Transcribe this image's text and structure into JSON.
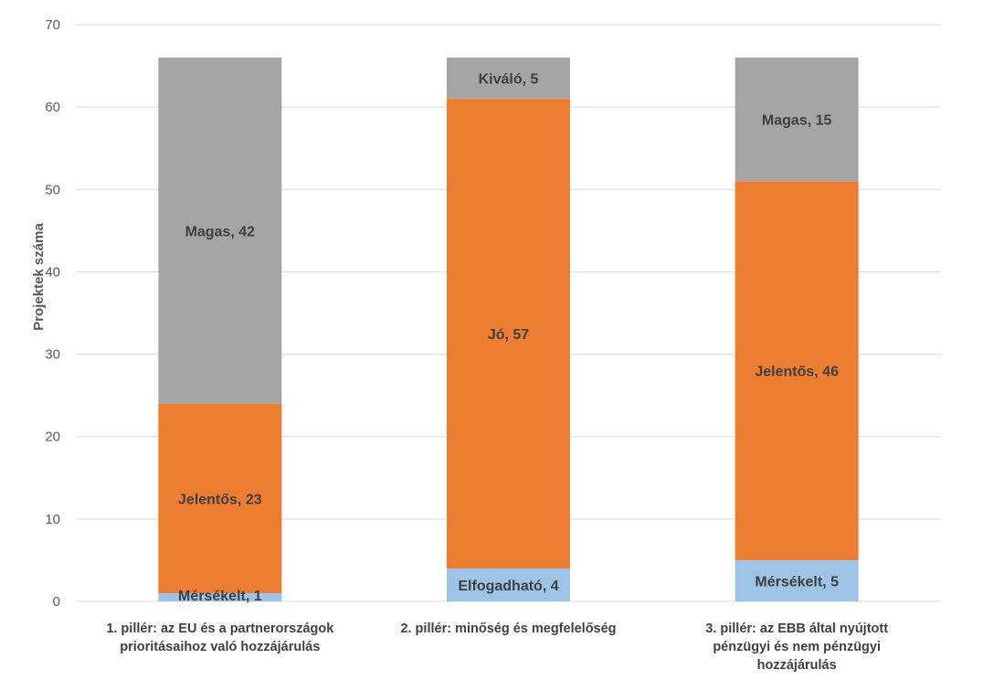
{
  "chart_data": {
    "type": "bar",
    "stacked": true,
    "ylabel": "Projektek száma",
    "ylim": [
      0,
      70
    ],
    "yticks": [
      0,
      10,
      20,
      30,
      40,
      50,
      60,
      70
    ],
    "grid": true,
    "legend": "none",
    "categories": [
      [
        "1. pillér: az EU és a partnerországok",
        "prioritásaihoz való hozzájárulás"
      ],
      [
        "2. pillér: minőség és megfelelőség"
      ],
      [
        "3. pillér: az EBB által nyújtott",
        "pénzügyi és nem pénzügyi",
        "hozzájárulás"
      ]
    ],
    "stacks": [
      [
        {
          "label": "Mérsékelt, 1",
          "value": 1,
          "color": "#9dc3e6"
        },
        {
          "label": "Jelentős, 23",
          "value": 23,
          "color": "#ed7d31"
        },
        {
          "label": "Magas, 42",
          "value": 42,
          "color": "#a5a5a5"
        }
      ],
      [
        {
          "label": "Elfogadható, 4",
          "value": 4,
          "color": "#9dc3e6"
        },
        {
          "label": "Jó, 57",
          "value": 57,
          "color": "#ed7d31"
        },
        {
          "label": "Kiváló, 5",
          "value": 5,
          "color": "#a5a5a5"
        }
      ],
      [
        {
          "label": "Mérsékelt, 5",
          "value": 5,
          "color": "#9dc3e6"
        },
        {
          "label": "Jelentős, 46",
          "value": 46,
          "color": "#ed7d31"
        },
        {
          "label": "Magas, 15",
          "value": 15,
          "color": "#a5a5a5"
        }
      ]
    ]
  }
}
